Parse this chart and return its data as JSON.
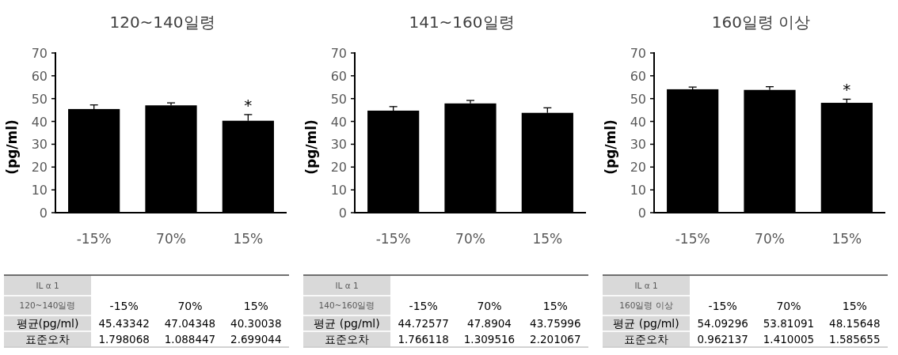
{
  "chart_data": [
    {
      "type": "bar",
      "title": "120~140일령",
      "ylabel": "(pg/ml)",
      "categories": [
        "-15%",
        "70%",
        "15%"
      ],
      "values": [
        45.43342,
        47.04348,
        40.30038
      ],
      "errors": [
        1.798068,
        1.088447,
        2.699044
      ],
      "color": "#000000",
      "ylim": [
        0,
        70
      ],
      "yticks": [
        0,
        10,
        20,
        30,
        40,
        50,
        60,
        70
      ],
      "data_labels": true,
      "annotations": [
        {
          "text": "*",
          "x": "15%",
          "y": 40.30038
        },
        "IL α 1",
        "120~140일령",
        "평균(pg/ml)",
        "표준오차",
        "1.798068",
        "1.088447",
        "2.699044"
      ]
    },
    {
      "type": "bar",
      "title": "141~160일령",
      "ylabel": "(pg/ml)",
      "categories": [
        "-15%",
        "70%",
        "15%"
      ],
      "values": [
        44.72577,
        47.8904,
        43.75996
      ],
      "errors": [
        1.766118,
        1.309516,
        2.201067
      ],
      "color": "#000000",
      "ylim": [
        0,
        70
      ],
      "yticks": [
        0,
        10,
        20,
        30,
        40,
        50,
        60,
        70
      ],
      "data_labels": true,
      "annotations": [
        "IL α 1",
        "140~160일령",
        "평균 (pg/ml)",
        "표준오차",
        "1.766118",
        "1.309516",
        "2.201067"
      ]
    },
    {
      "type": "bar",
      "title": "160일령 이상",
      "ylabel": "(pg/ml)",
      "categories": [
        "-15%",
        "70%",
        "15%"
      ],
      "values": [
        54.09296,
        53.81091,
        48.15648
      ],
      "errors": [
        0.962137,
        1.410005,
        1.585655
      ],
      "color": "#000000",
      "ylim": [
        0,
        70
      ],
      "yticks": [
        0,
        10,
        20,
        30,
        40,
        50,
        60,
        70
      ],
      "data_labels": true,
      "annotations": [
        {
          "text": "*",
          "x": "15%",
          "y": 48.15648
        },
        "IL α 1",
        "160일령 이상",
        "평균 (pg/ml)",
        "표준오차",
        "0.962137",
        "1.410005",
        "1.585655"
      ]
    }
  ]
}
